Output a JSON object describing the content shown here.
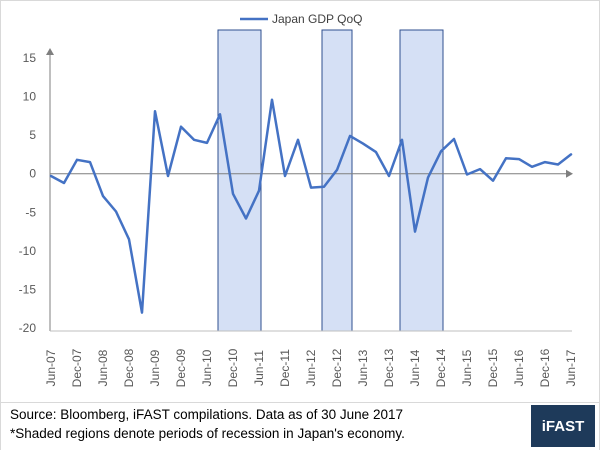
{
  "chart_data": {
    "type": "line",
    "title": "",
    "xlabel": "",
    "ylabel": "",
    "ylim": [
      -20,
      15
    ],
    "yticks": [
      15,
      10,
      5,
      0,
      -5,
      -10,
      -15,
      -20
    ],
    "grid": false,
    "legend_position": "top",
    "x_tick_labels": [
      "Jun-07",
      "Dec-07",
      "Jun-08",
      "Dec-08",
      "Jun-09",
      "Dec-09",
      "Jun-10",
      "Dec-10",
      "Jun-11",
      "Dec-11",
      "Jun-12",
      "Dec-12",
      "Jun-13",
      "Dec-13",
      "Jun-14",
      "Dec-14",
      "Jun-15",
      "Dec-15",
      "Jun-16",
      "Dec-16",
      "Jun-17"
    ],
    "x": [
      "Jun-07",
      "Sep-07",
      "Dec-07",
      "Mar-08",
      "Jun-08",
      "Sep-08",
      "Dec-08",
      "Mar-09",
      "Jun-09",
      "Sep-09",
      "Dec-09",
      "Mar-10",
      "Jun-10",
      "Sep-10",
      "Dec-10",
      "Mar-11",
      "Jun-11",
      "Sep-11",
      "Dec-11",
      "Mar-12",
      "Jun-12",
      "Sep-12",
      "Dec-12",
      "Mar-13",
      "Jun-13",
      "Sep-13",
      "Dec-13",
      "Mar-14",
      "Jun-14",
      "Sep-14",
      "Dec-14",
      "Mar-15",
      "Jun-15",
      "Sep-15",
      "Dec-15",
      "Mar-16",
      "Jun-16",
      "Sep-16",
      "Dec-16",
      "Mar-17",
      "Jun-17"
    ],
    "series": [
      {
        "name": "Japan GDP QoQ",
        "color": "#4472c4",
        "values": [
          -0.3,
          -1.2,
          1.8,
          1.5,
          -2.9,
          -4.9,
          -8.5,
          -18.0,
          8.1,
          -0.3,
          6.1,
          4.4,
          4.0,
          7.7,
          -2.6,
          -5.8,
          -2.2,
          9.6,
          -0.3,
          4.4,
          -1.8,
          -1.7,
          0.5,
          4.9,
          3.9,
          2.8,
          -0.3,
          4.4,
          -7.5,
          -0.5,
          2.9,
          4.5,
          -0.1,
          0.6,
          -0.9,
          2.0,
          1.9,
          0.9,
          1.5,
          1.2,
          2.5
        ]
      }
    ],
    "shaded_regions": [
      {
        "start": "Sep-10",
        "end": "Jun-11"
      },
      {
        "start": "Sep-12",
        "end": "Mar-13"
      },
      {
        "start": "Mar-14",
        "end": "Dec-14"
      }
    ],
    "shade_color": "#d5e0f5"
  },
  "footer": {
    "source": "Source: Bloomberg, iFAST compilations. Data as of 30 June 2017",
    "note": "*Shaded regions denote periods of recession in Japan's economy.",
    "brand": "iFAST"
  }
}
